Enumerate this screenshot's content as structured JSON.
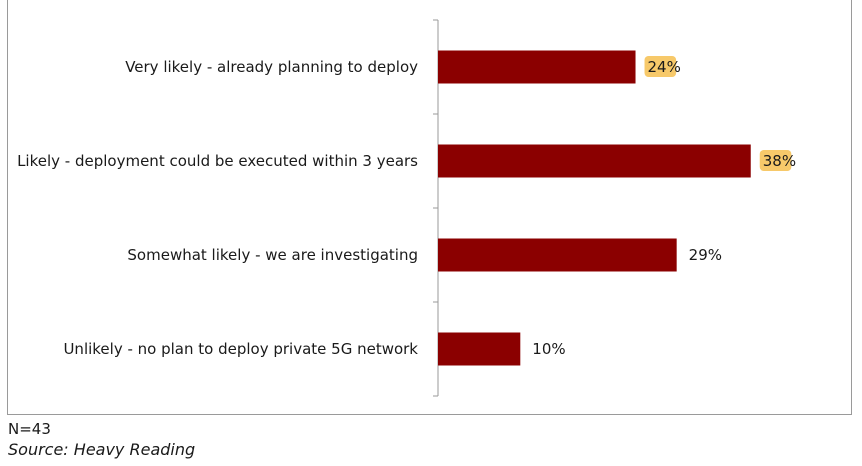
{
  "chart_data": {
    "type": "bar",
    "orientation": "horizontal",
    "categories": [
      "Very likely - already planning to deploy",
      "Likely -  deployment could be executed within 3 years",
      "Somewhat likely - we are investigating",
      "Unlikely - no plan to deploy private 5G network"
    ],
    "values": [
      24,
      38,
      29,
      10
    ],
    "value_labels": [
      "24%",
      "38%",
      "29%",
      "10%"
    ],
    "highlighted": [
      true,
      true,
      false,
      false
    ],
    "xlim": [
      0,
      100
    ],
    "grid": false,
    "legend": "none"
  },
  "colors": {
    "bar": "#8b0000",
    "highlight": "#f7c96a",
    "axis": "#9a9a9a"
  },
  "notes": {
    "n": "N=43",
    "source": "Source: Heavy Reading"
  }
}
